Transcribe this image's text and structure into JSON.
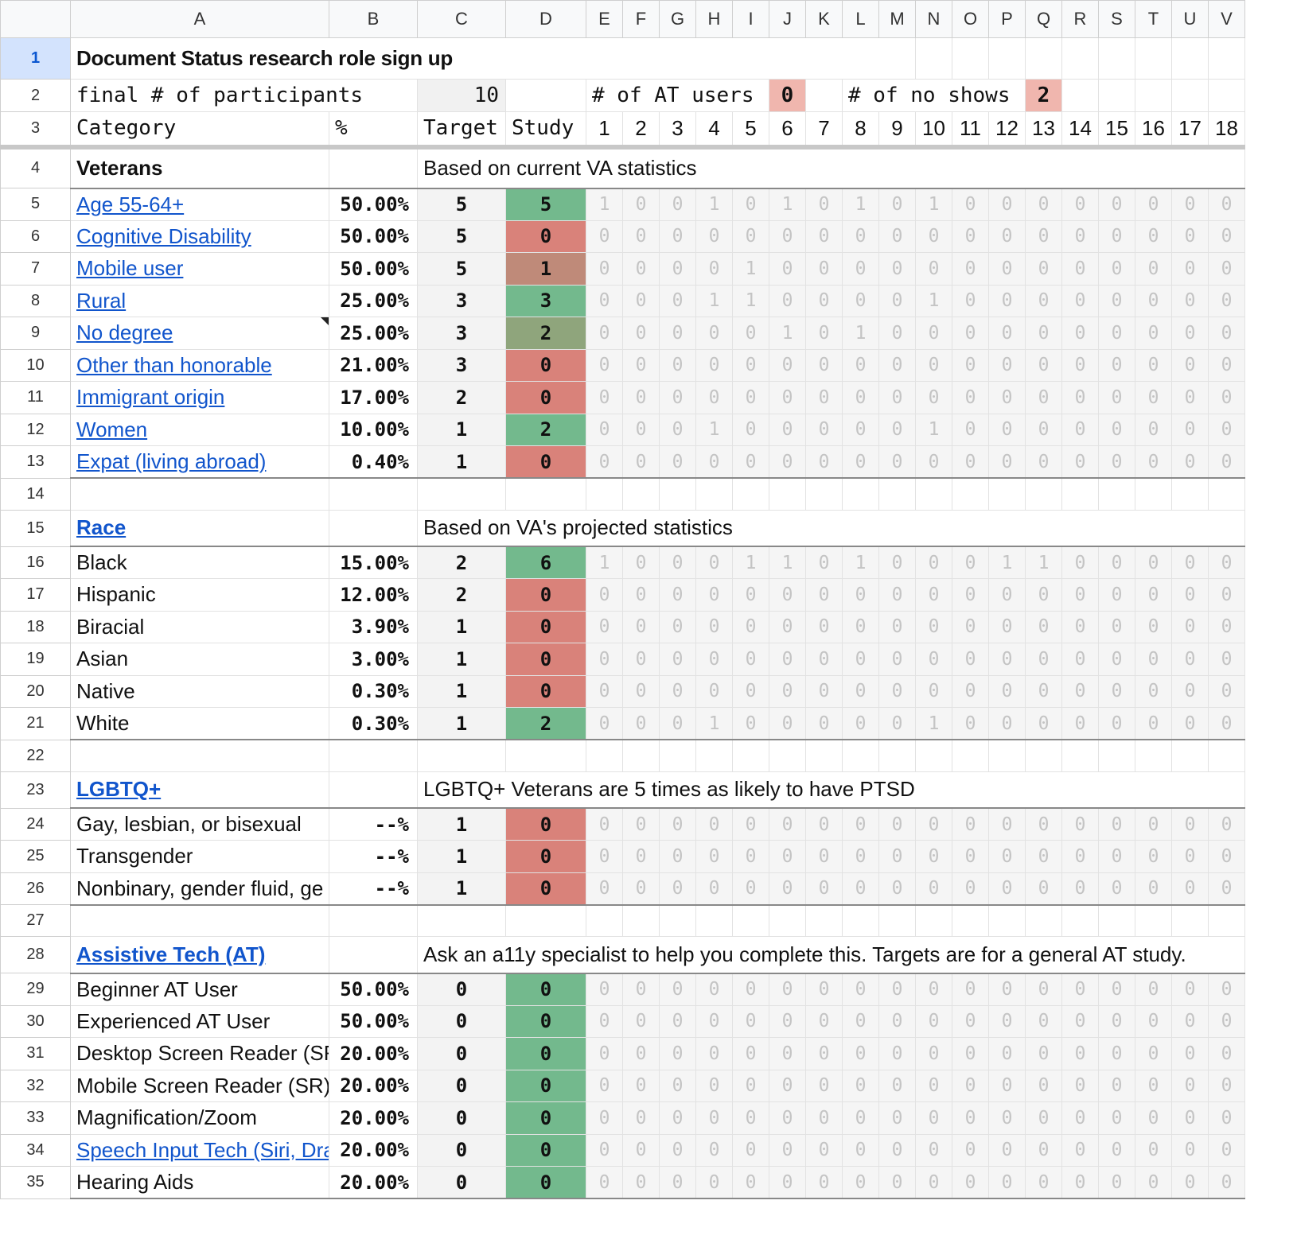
{
  "columns": [
    "A",
    "B",
    "C",
    "D",
    "E",
    "F",
    "G",
    "H",
    "I",
    "J",
    "K",
    "L",
    "M",
    "N",
    "O",
    "P",
    "Q",
    "R",
    "S",
    "T",
    "U",
    "V"
  ],
  "title": "Document Status research role sign up",
  "row2": {
    "label": "final # of participants",
    "participants": "10",
    "at_label": "# of AT users",
    "at_value": "0",
    "noshow_label": "# of no shows",
    "noshow_value": "2"
  },
  "row3": {
    "category": "Category",
    "pct": "%",
    "target": "Target",
    "study": "Study",
    "sessions": [
      "1",
      "2",
      "3",
      "4",
      "5",
      "6",
      "7",
      "8",
      "9",
      "10",
      "11",
      "12",
      "13",
      "14",
      "15",
      "16",
      "17",
      "18"
    ]
  },
  "sections": [
    {
      "title": "Veterans",
      "title_link": false,
      "note": "Based on current VA statistics",
      "rows": [
        {
          "label": "Age 55-64+",
          "link": true,
          "pct": "50.00%",
          "target": "5",
          "study": "5",
          "status": "green",
          "sessions": [
            "1",
            "0",
            "0",
            "1",
            "0",
            "1",
            "0",
            "1",
            "0",
            "1",
            "0",
            "0",
            "0",
            "0",
            "0",
            "0",
            "0",
            "0"
          ]
        },
        {
          "label": "Cognitive Disability",
          "link": true,
          "pct": "50.00%",
          "target": "5",
          "study": "0",
          "status": "red",
          "sessions": [
            "0",
            "0",
            "0",
            "0",
            "0",
            "0",
            "0",
            "0",
            "0",
            "0",
            "0",
            "0",
            "0",
            "0",
            "0",
            "0",
            "0",
            "0"
          ]
        },
        {
          "label": "Mobile user",
          "link": true,
          "pct": "50.00%",
          "target": "5",
          "study": "1",
          "status": "brown",
          "sessions": [
            "0",
            "0",
            "0",
            "0",
            "1",
            "0",
            "0",
            "0",
            "0",
            "0",
            "0",
            "0",
            "0",
            "0",
            "0",
            "0",
            "0",
            "0"
          ]
        },
        {
          "label": "Rural",
          "link": true,
          "pct": "25.00%",
          "target": "3",
          "study": "3",
          "status": "green",
          "sessions": [
            "0",
            "0",
            "0",
            "1",
            "1",
            "0",
            "0",
            "0",
            "0",
            "1",
            "0",
            "0",
            "0",
            "0",
            "0",
            "0",
            "0",
            "0"
          ]
        },
        {
          "label": "No degree",
          "link": true,
          "pct": "25.00%",
          "target": "3",
          "study": "2",
          "status": "olive",
          "flag": true,
          "sessions": [
            "0",
            "0",
            "0",
            "0",
            "0",
            "1",
            "0",
            "1",
            "0",
            "0",
            "0",
            "0",
            "0",
            "0",
            "0",
            "0",
            "0",
            "0"
          ]
        },
        {
          "label": "Other than honorable",
          "link": true,
          "pct": "21.00%",
          "target": "3",
          "study": "0",
          "status": "red",
          "sessions": [
            "0",
            "0",
            "0",
            "0",
            "0",
            "0",
            "0",
            "0",
            "0",
            "0",
            "0",
            "0",
            "0",
            "0",
            "0",
            "0",
            "0",
            "0"
          ]
        },
        {
          "label": "Immigrant origin",
          "link": true,
          "pct": "17.00%",
          "target": "2",
          "study": "0",
          "status": "red",
          "sessions": [
            "0",
            "0",
            "0",
            "0",
            "0",
            "0",
            "0",
            "0",
            "0",
            "0",
            "0",
            "0",
            "0",
            "0",
            "0",
            "0",
            "0",
            "0"
          ]
        },
        {
          "label": "Women",
          "link": true,
          "pct": "10.00%",
          "target": "1",
          "study": "2",
          "status": "green",
          "sessions": [
            "0",
            "0",
            "0",
            "1",
            "0",
            "0",
            "0",
            "0",
            "0",
            "1",
            "0",
            "0",
            "0",
            "0",
            "0",
            "0",
            "0",
            "0"
          ]
        },
        {
          "label": "Expat (living abroad)",
          "link": true,
          "pct": "0.40%",
          "target": "1",
          "study": "0",
          "status": "red",
          "sessions": [
            "0",
            "0",
            "0",
            "0",
            "0",
            "0",
            "0",
            "0",
            "0",
            "0",
            "0",
            "0",
            "0",
            "0",
            "0",
            "0",
            "0",
            "0"
          ]
        }
      ]
    },
    {
      "title": "Race",
      "title_link": true,
      "note": "Based on VA's projected statistics",
      "rows": [
        {
          "label": "Black",
          "link": false,
          "pct": "15.00%",
          "target": "2",
          "study": "6",
          "status": "green",
          "sessions": [
            "1",
            "0",
            "0",
            "0",
            "1",
            "1",
            "0",
            "1",
            "0",
            "0",
            "0",
            "1",
            "1",
            "0",
            "0",
            "0",
            "0",
            "0"
          ]
        },
        {
          "label": "Hispanic",
          "link": false,
          "pct": "12.00%",
          "target": "2",
          "study": "0",
          "status": "red",
          "sessions": [
            "0",
            "0",
            "0",
            "0",
            "0",
            "0",
            "0",
            "0",
            "0",
            "0",
            "0",
            "0",
            "0",
            "0",
            "0",
            "0",
            "0",
            "0"
          ]
        },
        {
          "label": "Biracial",
          "link": false,
          "pct": "3.90%",
          "target": "1",
          "study": "0",
          "status": "red",
          "sessions": [
            "0",
            "0",
            "0",
            "0",
            "0",
            "0",
            "0",
            "0",
            "0",
            "0",
            "0",
            "0",
            "0",
            "0",
            "0",
            "0",
            "0",
            "0"
          ]
        },
        {
          "label": "Asian",
          "link": false,
          "pct": "3.00%",
          "target": "1",
          "study": "0",
          "status": "red",
          "sessions": [
            "0",
            "0",
            "0",
            "0",
            "0",
            "0",
            "0",
            "0",
            "0",
            "0",
            "0",
            "0",
            "0",
            "0",
            "0",
            "0",
            "0",
            "0"
          ]
        },
        {
          "label": "Native",
          "link": false,
          "pct": "0.30%",
          "target": "1",
          "study": "0",
          "status": "red",
          "sessions": [
            "0",
            "0",
            "0",
            "0",
            "0",
            "0",
            "0",
            "0",
            "0",
            "0",
            "0",
            "0",
            "0",
            "0",
            "0",
            "0",
            "0",
            "0"
          ]
        },
        {
          "label": "White",
          "link": false,
          "pct": "0.30%",
          "target": "1",
          "study": "2",
          "status": "green",
          "sessions": [
            "0",
            "0",
            "0",
            "1",
            "0",
            "0",
            "0",
            "0",
            "0",
            "1",
            "0",
            "0",
            "0",
            "0",
            "0",
            "0",
            "0",
            "0"
          ]
        }
      ]
    },
    {
      "title": "LGBTQ+",
      "title_link": true,
      "note": "LGBTQ+ Veterans are 5 times as likely to have PTSD",
      "rows": [
        {
          "label": "Gay, lesbian, or bisexual",
          "link": false,
          "pct": "--%",
          "target": "1",
          "study": "0",
          "status": "red",
          "sessions": [
            "0",
            "0",
            "0",
            "0",
            "0",
            "0",
            "0",
            "0",
            "0",
            "0",
            "0",
            "0",
            "0",
            "0",
            "0",
            "0",
            "0",
            "0"
          ]
        },
        {
          "label": "Transgender",
          "link": false,
          "pct": "--%",
          "target": "1",
          "study": "0",
          "status": "red",
          "sessions": [
            "0",
            "0",
            "0",
            "0",
            "0",
            "0",
            "0",
            "0",
            "0",
            "0",
            "0",
            "0",
            "0",
            "0",
            "0",
            "0",
            "0",
            "0"
          ]
        },
        {
          "label": "Nonbinary, gender fluid, ge",
          "link": false,
          "pct": "--%",
          "target": "1",
          "study": "0",
          "status": "red",
          "sessions": [
            "0",
            "0",
            "0",
            "0",
            "0",
            "0",
            "0",
            "0",
            "0",
            "0",
            "0",
            "0",
            "0",
            "0",
            "0",
            "0",
            "0",
            "0"
          ]
        }
      ]
    },
    {
      "title": "Assistive Tech (AT)",
      "title_link": true,
      "note": "Ask an a11y specialist to help you complete this. Targets are for a general AT study.",
      "rows": [
        {
          "label": "Beginner AT User",
          "link": false,
          "pct": "50.00%",
          "target": "0",
          "study": "0",
          "status": "green",
          "sessions": [
            "0",
            "0",
            "0",
            "0",
            "0",
            "0",
            "0",
            "0",
            "0",
            "0",
            "0",
            "0",
            "0",
            "0",
            "0",
            "0",
            "0",
            "0"
          ]
        },
        {
          "label": "Experienced AT User",
          "link": false,
          "pct": "50.00%",
          "target": "0",
          "study": "0",
          "status": "green",
          "sessions": [
            "0",
            "0",
            "0",
            "0",
            "0",
            "0",
            "0",
            "0",
            "0",
            "0",
            "0",
            "0",
            "0",
            "0",
            "0",
            "0",
            "0",
            "0"
          ]
        },
        {
          "label": "Desktop Screen Reader (SR",
          "link": false,
          "pct": "20.00%",
          "target": "0",
          "study": "0",
          "status": "green",
          "sessions": [
            "0",
            "0",
            "0",
            "0",
            "0",
            "0",
            "0",
            "0",
            "0",
            "0",
            "0",
            "0",
            "0",
            "0",
            "0",
            "0",
            "0",
            "0"
          ]
        },
        {
          "label": "Mobile Screen Reader (SR)",
          "link": false,
          "pct": "20.00%",
          "target": "0",
          "study": "0",
          "status": "green",
          "sessions": [
            "0",
            "0",
            "0",
            "0",
            "0",
            "0",
            "0",
            "0",
            "0",
            "0",
            "0",
            "0",
            "0",
            "0",
            "0",
            "0",
            "0",
            "0"
          ]
        },
        {
          "label": "Magnification/Zoom",
          "link": false,
          "pct": "20.00%",
          "target": "0",
          "study": "0",
          "status": "green",
          "sessions": [
            "0",
            "0",
            "0",
            "0",
            "0",
            "0",
            "0",
            "0",
            "0",
            "0",
            "0",
            "0",
            "0",
            "0",
            "0",
            "0",
            "0",
            "0"
          ]
        },
        {
          "label": "Speech Input Tech (Siri, Dra",
          "link": true,
          "pct": "20.00%",
          "target": "0",
          "study": "0",
          "status": "green",
          "sessions": [
            "0",
            "0",
            "0",
            "0",
            "0",
            "0",
            "0",
            "0",
            "0",
            "0",
            "0",
            "0",
            "0",
            "0",
            "0",
            "0",
            "0",
            "0"
          ]
        },
        {
          "label": "Hearing Aids",
          "link": false,
          "pct": "20.00%",
          "target": "0",
          "study": "0",
          "status": "green",
          "sessions": [
            "0",
            "0",
            "0",
            "0",
            "0",
            "0",
            "0",
            "0",
            "0",
            "0",
            "0",
            "0",
            "0",
            "0",
            "0",
            "0",
            "0",
            "0"
          ]
        }
      ]
    }
  ],
  "colors": {
    "green": "#73b98d",
    "red": "#d9827a",
    "brown": "#bf8a79",
    "olive": "#8fa57c",
    "pink": "#f0b6ae",
    "link": "#1155cc"
  }
}
